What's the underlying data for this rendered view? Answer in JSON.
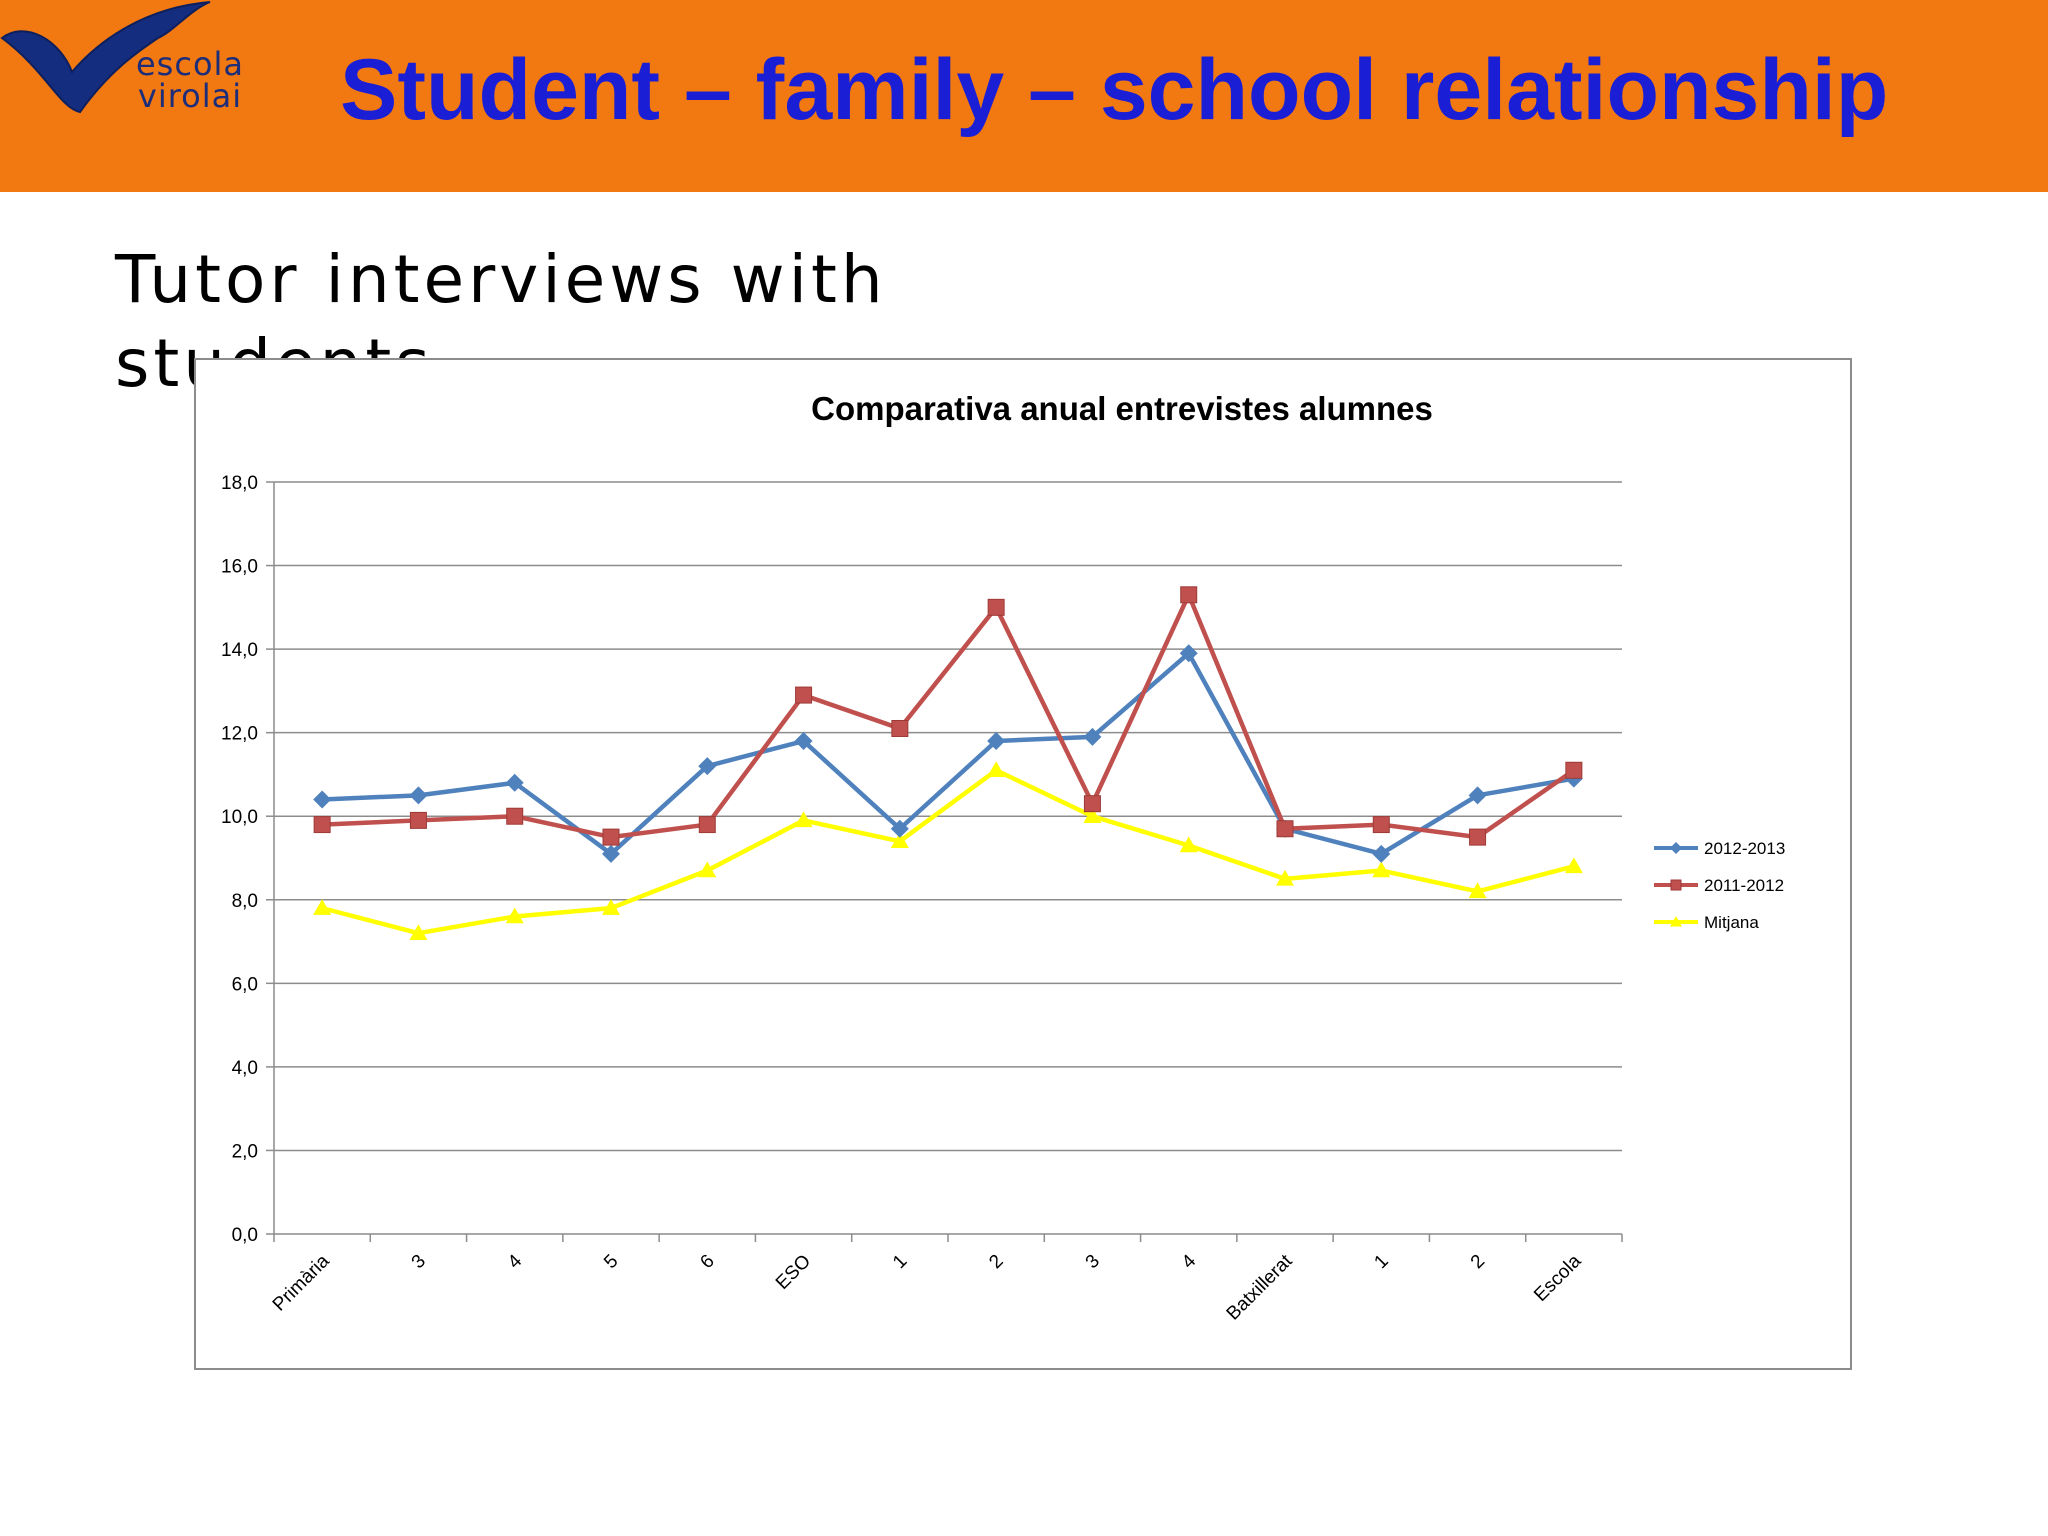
{
  "header": {
    "logo_line1": "escola",
    "logo_line2": "virolai",
    "title": "Student – family – school relationship",
    "background_color": "#f27812",
    "title_color": "#1a1fd6"
  },
  "slide": {
    "subtitle": "Tutor interviews with students"
  },
  "chart_data": {
    "type": "line",
    "title": "Comparativa anual entrevistes alumnes",
    "categories": [
      "Primària",
      "3",
      "4",
      "5",
      "6",
      "ESO",
      "1",
      "2",
      "3",
      "4",
      "Batxillerat",
      "1",
      "2",
      "Escola"
    ],
    "yticks": [
      "0,0",
      "2,0",
      "4,0",
      "6,0",
      "8,0",
      "10,0",
      "12,0",
      "14,0",
      "16,0",
      "18,0"
    ],
    "ylim": [
      0,
      18
    ],
    "grid": true,
    "legend_position": "right",
    "series": [
      {
        "name": "2012-2013",
        "color": "#4f81bd",
        "marker": "diamond",
        "values": [
          10.4,
          10.5,
          10.8,
          9.1,
          11.2,
          11.8,
          9.7,
          11.8,
          11.9,
          13.9,
          9.7,
          9.1,
          10.5,
          10.9
        ]
      },
      {
        "name": "2011-2012",
        "color": "#c0504d",
        "marker": "square",
        "values": [
          9.8,
          9.9,
          10.0,
          9.5,
          9.8,
          12.9,
          12.1,
          15.0,
          10.3,
          15.3,
          9.7,
          9.8,
          9.5,
          11.1
        ]
      },
      {
        "name": "Mitjana",
        "color": "#ffff00",
        "marker": "triangle",
        "values": [
          7.8,
          7.2,
          7.6,
          7.8,
          8.7,
          9.9,
          9.4,
          11.1,
          10.0,
          9.3,
          8.5,
          8.7,
          8.2,
          8.8
        ]
      }
    ]
  }
}
